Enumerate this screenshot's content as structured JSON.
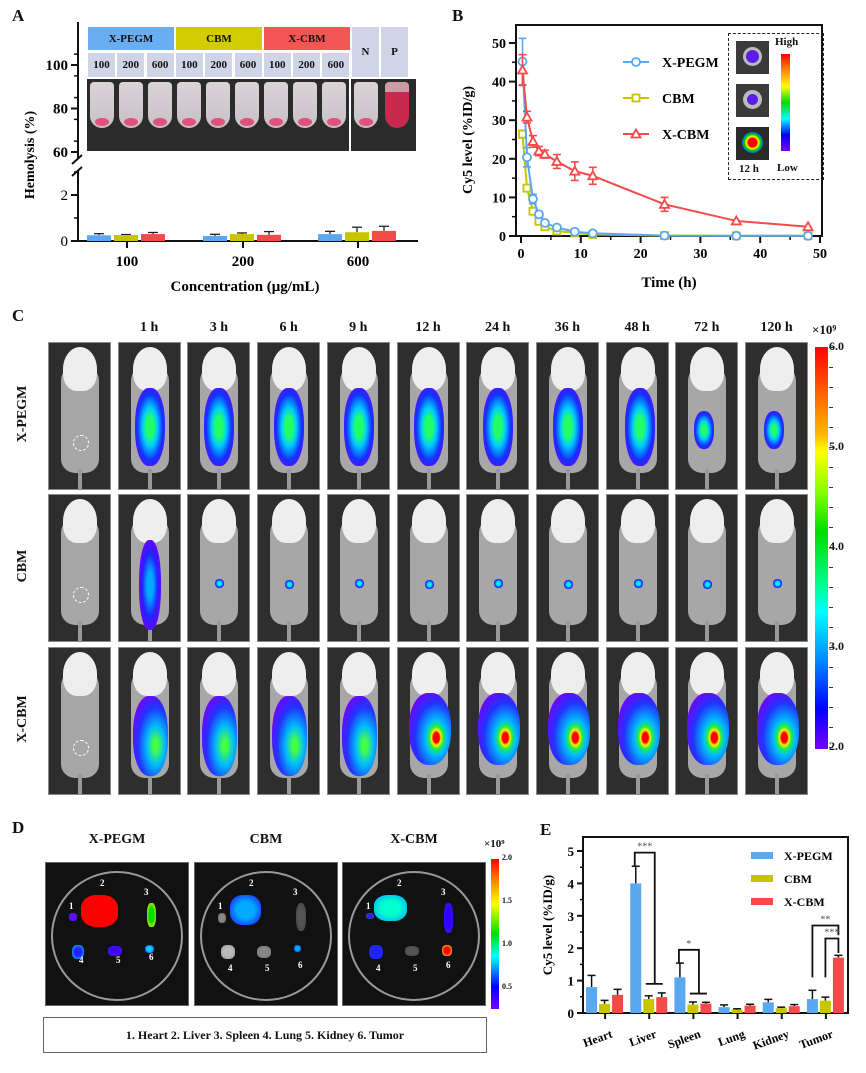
{
  "panels": {
    "A": "A",
    "B": "B",
    "C": "C",
    "D": "D",
    "E": "E"
  },
  "colors": {
    "xpegm": "#5aa9f0",
    "cbm": "#c8c400",
    "xcbm": "#f34a4a",
    "header_gray": "#cfd4e6"
  },
  "panelA_headers": {
    "groups": [
      {
        "label": "X-PEGM",
        "color": "#6aaef2"
      },
      {
        "label": "CBM",
        "color": "#d2cc00"
      },
      {
        "label": "X-CBM",
        "color": "#f45555"
      }
    ],
    "sub_labels": [
      "100",
      "200",
      "600",
      "100",
      "200",
      "600",
      "100",
      "200",
      "600"
    ],
    "controls": [
      "N",
      "P"
    ]
  },
  "chart_data": [
    {
      "id": "A",
      "type": "bar",
      "title": "",
      "xlabel": "Concentration (μg/mL)",
      "ylabel": "Hemolysis (%)",
      "categories": [
        "100",
        "200",
        "600"
      ],
      "y_ticks_lower": [
        "0",
        "2"
      ],
      "y_ticks_upper": [
        "60",
        "80",
        "100"
      ],
      "ylim_lower": [
        0,
        3.5
      ],
      "ylim_upper": [
        55,
        105
      ],
      "axis_break": true,
      "series": [
        {
          "name": "X-PEGM",
          "color": "#5aa9f0",
          "values": [
            0.25,
            0.22,
            0.3
          ],
          "errors": [
            0.07,
            0.07,
            0.12
          ]
        },
        {
          "name": "CBM",
          "color": "#c8c400",
          "values": [
            0.26,
            0.3,
            0.38
          ],
          "errors": [
            0.02,
            0.05,
            0.22
          ]
        },
        {
          "name": "X-CBM",
          "color": "#f34a4a",
          "values": [
            0.3,
            0.27,
            0.44
          ],
          "errors": [
            0.07,
            0.14,
            0.2
          ]
        }
      ]
    },
    {
      "id": "B",
      "type": "line",
      "xlabel": "Time (h)",
      "ylabel": "Cy5 level (%ID/g)",
      "xlim": [
        0,
        50
      ],
      "ylim": [
        0,
        50
      ],
      "x_ticks": [
        "0",
        "10",
        "20",
        "30",
        "40",
        "50"
      ],
      "y_ticks": [
        "0",
        "10",
        "20",
        "30",
        "40",
        "50"
      ],
      "legend_position": "top-right",
      "series": [
        {
          "name": "X-PEGM",
          "color": "#5aa9f0",
          "marker": "circle",
          "x": [
            0.25,
            1,
            2,
            3,
            4,
            6,
            9,
            12,
            24,
            36,
            48
          ],
          "y": [
            45.2,
            20.4,
            9.6,
            5.6,
            3.4,
            2.2,
            1.1,
            0.7,
            0.1,
            0.05,
            0.05
          ],
          "err": [
            6.0,
            2.5,
            1.2,
            0.8,
            0.5,
            0.3,
            0.2,
            0.2,
            0.1,
            0.05,
            0.05
          ]
        },
        {
          "name": "CBM",
          "color": "#c8c400",
          "marker": "square",
          "x": [
            0.25,
            1,
            2,
            3,
            4,
            6,
            9,
            12,
            24,
            36,
            48
          ],
          "y": [
            26.4,
            12.4,
            6.4,
            3.8,
            2.4,
            1.3,
            0.8,
            0.4,
            0.1,
            0.05,
            0.05
          ],
          "err": [
            1.0,
            0.8,
            0.6,
            0.4,
            0.3,
            0.2,
            0.1,
            0.1,
            0.05,
            0.05,
            0.05
          ]
        },
        {
          "name": "X-CBM",
          "color": "#f34a4a",
          "marker": "triangle",
          "x": [
            0.25,
            1,
            2,
            3,
            4,
            6,
            9,
            12,
            24,
            36,
            48
          ],
          "y": [
            43.0,
            30.8,
            24.5,
            22.0,
            21.2,
            19.3,
            16.8,
            15.6,
            8.2,
            3.9,
            2.4
          ],
          "err": [
            4.0,
            1.5,
            1.5,
            1.2,
            1.0,
            1.8,
            2.4,
            2.2,
            1.8,
            0.5,
            0.3
          ]
        }
      ],
      "inset": {
        "time_label": "12 h",
        "high_label": "High",
        "low_label": "Low"
      }
    },
    {
      "id": "E",
      "type": "bar",
      "xlabel": "",
      "ylabel": "Cy5 level (%ID/g)",
      "categories": [
        "Heart",
        "Liver",
        "Spleen",
        "Lung",
        "Kidney",
        "Tumor"
      ],
      "ylim": [
        0,
        5
      ],
      "y_ticks": [
        "0",
        "1",
        "2",
        "3",
        "4",
        "5"
      ],
      "legend_position": "top-right",
      "series": [
        {
          "name": "X-PEGM",
          "color": "#5aa9f0",
          "values": [
            0.8,
            4.0,
            1.1,
            0.18,
            0.33,
            0.43
          ],
          "errors": [
            0.36,
            0.53,
            0.44,
            0.07,
            0.09,
            0.27
          ]
        },
        {
          "name": "CBM",
          "color": "#c8c400",
          "values": [
            0.28,
            0.43,
            0.26,
            0.1,
            0.15,
            0.38
          ],
          "errors": [
            0.11,
            0.1,
            0.08,
            0.03,
            0.03,
            0.11
          ]
        },
        {
          "name": "X-CBM",
          "color": "#f34a4a",
          "values": [
            0.56,
            0.49,
            0.29,
            0.23,
            0.21,
            1.71
          ],
          "errors": [
            0.17,
            0.13,
            0.04,
            0.04,
            0.05,
            0.07
          ]
        }
      ],
      "significance": [
        {
          "label": "***",
          "category": "Liver"
        },
        {
          "label": "*",
          "category": "Spleen"
        },
        {
          "label": "**",
          "category": "Tumor",
          "pair": "X-PEGM vs X-CBM"
        },
        {
          "label": "***",
          "category": "Tumor",
          "pair": "CBM vs X-CBM"
        }
      ]
    }
  ],
  "panelC": {
    "time_labels": [
      "1 h",
      "3 h",
      "6 h",
      "9 h",
      "12 h",
      "24 h",
      "36 h",
      "48 h",
      "72 h",
      "120 h"
    ],
    "row_labels": [
      "X-PEGM",
      "CBM",
      "X-CBM"
    ],
    "colorbar": {
      "exponent": "×10⁹",
      "ticks": [
        "6.0",
        "5.0",
        "4.0",
        "3.0",
        "2.0"
      ]
    }
  },
  "panelD": {
    "titles": [
      "X-PEGM",
      "CBM",
      "X-CBM"
    ],
    "organ_numbers": [
      "1",
      "2",
      "3",
      "4",
      "5",
      "6"
    ],
    "colorbar": {
      "exponent": "×10⁹",
      "ticks": [
        "2.0",
        "1.5",
        "1.0",
        "0.5"
      ]
    },
    "legend": "1. Heart  2. Liver  3. Spleen  4.  Lung  5. Kidney  6. Tumor"
  }
}
